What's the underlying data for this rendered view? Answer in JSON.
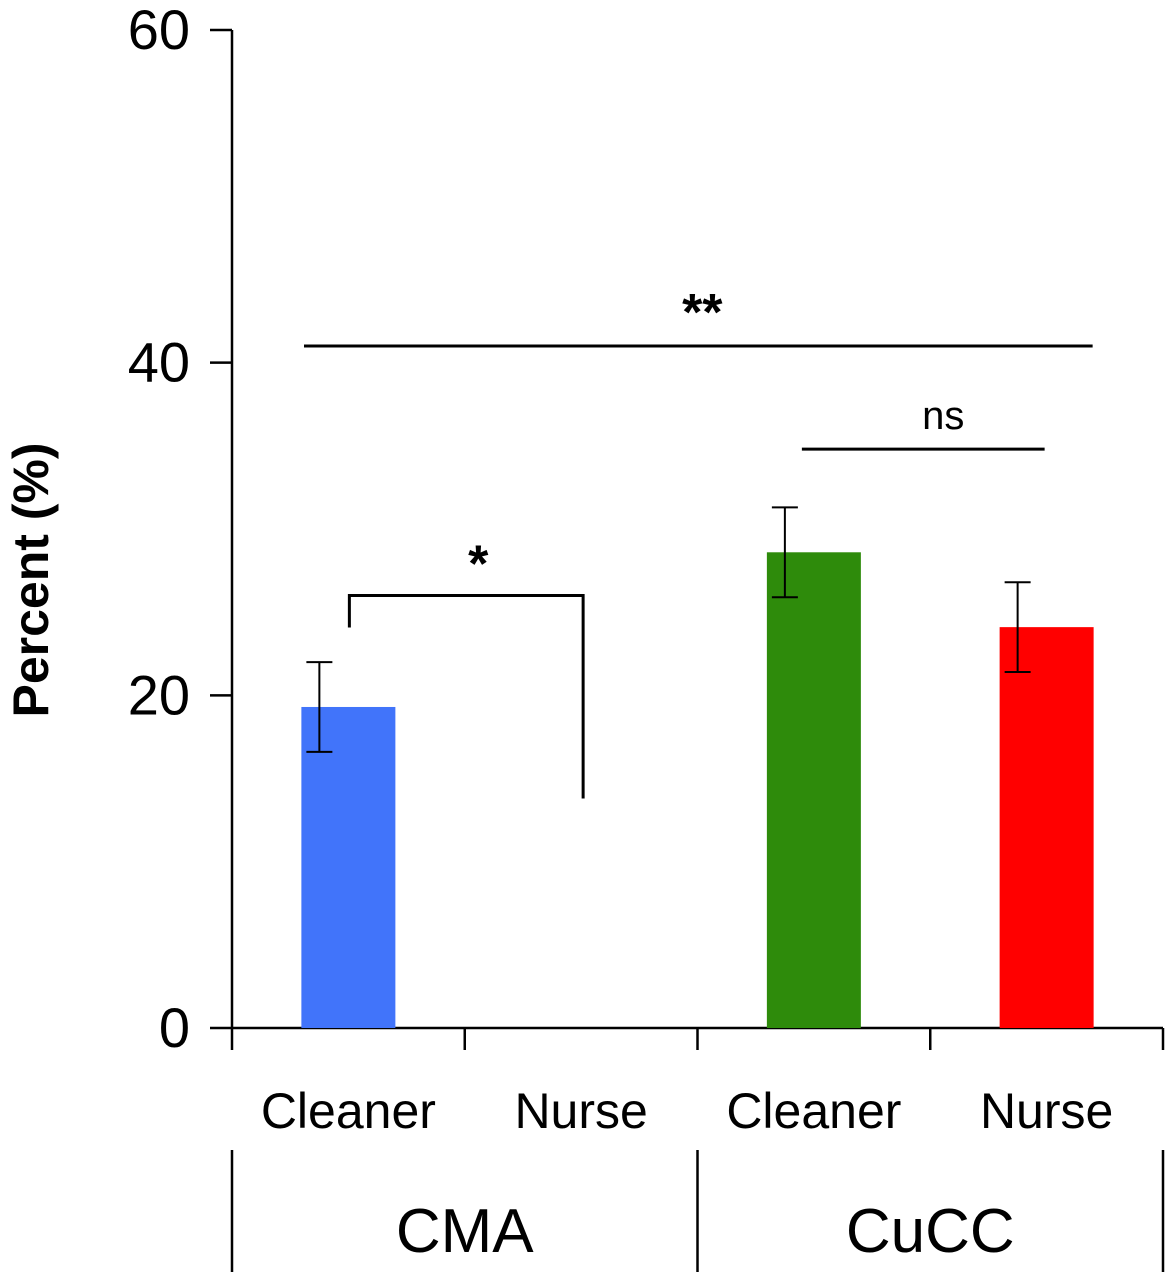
{
  "chart_data": {
    "type": "bar",
    "ylabel": "Percent (%)",
    "xlabel": "",
    "ylim": [
      0,
      60
    ],
    "yticks": [
      0,
      20,
      40,
      60
    ],
    "categories": [
      "Cleaner",
      "Nurse",
      "Cleaner",
      "Nurse"
    ],
    "groups": [
      {
        "label": "CMA",
        "categories": [
          0,
          1
        ]
      },
      {
        "label": "CuCC",
        "categories": [
          2,
          3
        ]
      }
    ],
    "values": [
      19.3,
      null,
      28.6,
      24.1
    ],
    "errors": [
      2.7,
      null,
      2.7,
      2.7
    ],
    "colors": [
      "#4174FA",
      null,
      "#2E8B0B",
      "#FF0000"
    ],
    "significance": [
      {
        "label": "*",
        "from": 0,
        "to": 1,
        "y": 26
      },
      {
        "label": "ns",
        "from": 2,
        "to": 3,
        "y": 34.8
      },
      {
        "label": "**",
        "from": 0,
        "to": 3,
        "y": 41
      }
    ],
    "grid": false,
    "legend": "none"
  }
}
